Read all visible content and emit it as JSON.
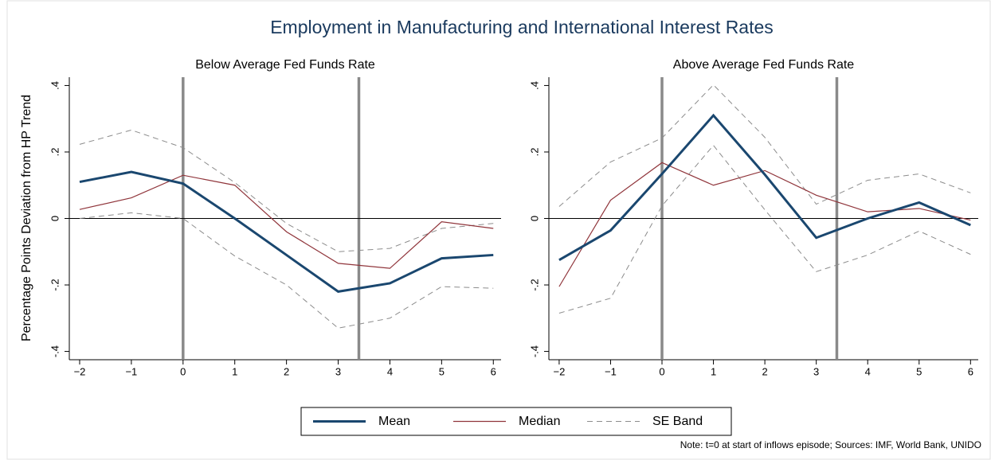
{
  "title": "Employment in Manufacturing and International Interest Rates",
  "y_label": "Percentage Points Deviation from HP Trend",
  "note": "Note: t=0 at start of inflows episode; Sources: IMF, World Bank, UNIDO",
  "chart_data": [
    {
      "type": "line",
      "title": "Below Average Fed Funds Rate",
      "x": [
        -2,
        -1,
        0,
        1,
        2,
        3,
        4,
        5,
        6
      ],
      "xlim": [
        -2.2,
        6.15
      ],
      "xticks": [
        {
          "value": -2,
          "label": "−2"
        },
        {
          "value": -1,
          "label": "−1"
        },
        0,
        1,
        2,
        3,
        4,
        5,
        6
      ],
      "ylim": [
        -0.425,
        0.425
      ],
      "yticks": [
        {
          "value": -0.4,
          "label": "-.4"
        },
        {
          "value": -0.2,
          "label": "-.2"
        },
        0,
        {
          "value": 0.2,
          "label": ".2"
        },
        {
          "value": 0.4,
          "label": ".4"
        }
      ],
      "hline": 0,
      "vlines": [
        0,
        3.4
      ],
      "series": [
        {
          "name": "Mean",
          "color": "#1a476f",
          "width": 3,
          "values": [
            0.11,
            0.14,
            0.105,
            0,
            -0.11,
            -0.22,
            -0.195,
            -0.12,
            -0.11
          ]
        },
        {
          "name": "Median",
          "color": "#90353b",
          "width": 1.2,
          "values": [
            0.027,
            0.062,
            0.13,
            0.1,
            -0.04,
            -0.135,
            -0.15,
            -0.01,
            -0.03
          ]
        },
        {
          "name": "SE Band",
          "color": "#8c8c8c",
          "width": 1,
          "dashed": true,
          "upper": [
            0.223,
            0.266,
            0.213,
            0.108,
            -0.015,
            -0.1,
            -0.09,
            -0.03,
            -0.015
          ],
          "lower": [
            0,
            0.017,
            0,
            -0.113,
            -0.2,
            -0.33,
            -0.3,
            -0.205,
            -0.21
          ]
        }
      ]
    },
    {
      "type": "line",
      "title": "Above Average Fed Funds Rate",
      "x": [
        -2,
        -1,
        0,
        1,
        2,
        3,
        4,
        5,
        6
      ],
      "xlim": [
        -2.2,
        6.15
      ],
      "xticks": [
        {
          "value": -2,
          "label": "−2"
        },
        {
          "value": -1,
          "label": "−1"
        },
        0,
        1,
        2,
        3,
        4,
        5,
        6
      ],
      "ylim": [
        -0.425,
        0.425
      ],
      "yticks": [
        {
          "value": -0.4,
          "label": "-.4"
        },
        {
          "value": -0.2,
          "label": "-.2"
        },
        0,
        {
          "value": 0.2,
          "label": ".2"
        },
        {
          "value": 0.4,
          "label": ".4"
        }
      ],
      "hline": 0,
      "vlines": [
        0,
        3.4
      ],
      "series": [
        {
          "name": "Mean",
          "color": "#1a476f",
          "width": 3,
          "values": [
            -0.125,
            -0.036,
            0.134,
            0.31,
            0.132,
            -0.058,
            0,
            0.048,
            -0.02
          ]
        },
        {
          "name": "Median",
          "color": "#90353b",
          "width": 1.2,
          "values": [
            -0.205,
            0.055,
            0.168,
            0.1,
            0.144,
            0.07,
            0.02,
            0.03,
            -0.005
          ]
        },
        {
          "name": "SE Band",
          "color": "#8c8c8c",
          "width": 1,
          "dashed": true,
          "upper": [
            0.036,
            0.17,
            0.242,
            0.402,
            0.244,
            0.043,
            0.115,
            0.134,
            0.077
          ],
          "lower": [
            -0.285,
            -0.24,
            0.038,
            0.22,
            0.026,
            -0.16,
            -0.11,
            -0.038,
            -0.108
          ]
        }
      ]
    }
  ]
}
